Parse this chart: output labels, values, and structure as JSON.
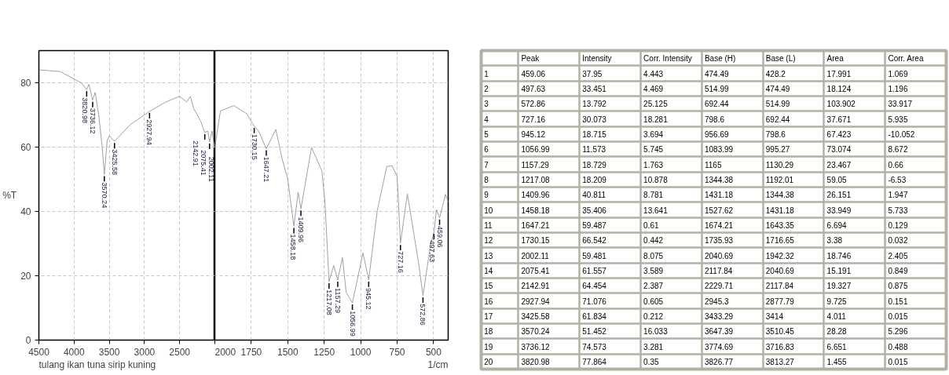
{
  "chart_data": [
    {
      "type": "line",
      "ylabel": "%T",
      "xlim": [
        4500,
        2000
      ],
      "ylim": [
        0,
        90
      ],
      "xticks": [
        4500,
        4000,
        3500,
        3000,
        2500
      ],
      "yticks": [
        0,
        20,
        40,
        60,
        80
      ],
      "grid": true,
      "series": [
        {
          "color": "#a0a0a0",
          "x": [
            4500,
            4200,
            3900,
            3820.98,
            3790,
            3736.12,
            3700,
            3650,
            3600,
            3570.24,
            3530,
            3500,
            3425.58,
            3200,
            2927.94,
            2700,
            2500,
            2400,
            2348,
            2300,
            2200,
            2160,
            2142.91,
            2100,
            2075.41,
            2040,
            2002.11,
            2000
          ],
          "values": [
            84,
            83.5,
            80,
            77.9,
            79.5,
            74.6,
            77,
            70,
            60,
            51.5,
            62,
            63.5,
            61.8,
            67,
            71.1,
            74,
            75.8,
            74,
            75.8,
            72,
            68,
            65.5,
            64.5,
            65,
            61.6,
            65,
            59.5,
            60
          ]
        }
      ],
      "annotations": [
        "tulang ikan tuna sirip kuning",
        {
          "text": "3820.98",
          "x": 3820.98,
          "y": 77.9
        },
        {
          "text": "3736.12",
          "x": 3736.12,
          "y": 74.6
        },
        {
          "text": "3570.24",
          "x": 3570.24,
          "y": 51.5
        },
        {
          "text": "3425.58",
          "x": 3425.58,
          "y": 61.8
        },
        {
          "text": "2927.94",
          "x": 2927.94,
          "y": 71.1
        },
        {
          "text": "2142.91",
          "x": 2142.91,
          "y": 64.5
        },
        {
          "text": "2075.41",
          "x": 2075.41,
          "y": 61.6
        },
        {
          "text": "2002.11",
          "x": 2002.11,
          "y": 59.5
        }
      ]
    },
    {
      "type": "line",
      "xlabel": "1/cm",
      "xlim": [
        2000,
        400
      ],
      "ylim": [
        0,
        90
      ],
      "xticks": [
        2000,
        1750,
        1500,
        1250,
        1000,
        750,
        500
      ],
      "yticks": [
        0,
        20,
        40,
        60,
        80
      ],
      "grid": true,
      "tick_labels": "x",
      "series": [
        {
          "color": "#a0a0a0",
          "x": [
            2000,
            1962,
            1871,
            1782,
            1730.15,
            1700,
            1647.21,
            1582,
            1538,
            1500,
            1458.18,
            1429,
            1409.96,
            1337,
            1266,
            1245,
            1217.08,
            1185,
            1157.29,
            1125,
            1100,
            1056.99,
            984,
            945.12,
            886,
            821,
            785,
            750,
            727.16,
            680,
            603,
            572.86,
            520,
            497.63,
            480,
            459.06,
            418,
            400
          ],
          "values": [
            60,
            71.2,
            72.9,
            70.4,
            66.5,
            65,
            59.5,
            65.5,
            56.2,
            50,
            35.4,
            46,
            40.8,
            59.9,
            52.6,
            42.8,
            18.2,
            23.2,
            18.7,
            25.7,
            14.9,
            11.6,
            27.1,
            18.7,
            40.3,
            54,
            54.2,
            50.9,
            30.1,
            45.5,
            24,
            13.8,
            30,
            33.5,
            40.6,
            38,
            45.3,
            43
          ]
        }
      ],
      "annotations": [
        {
          "text": "1730.15",
          "x": 1730.15,
          "y": 66.5
        },
        {
          "text": "1647.21",
          "x": 1647.21,
          "y": 59.5
        },
        {
          "text": "1458.18",
          "x": 1458.18,
          "y": 35.4
        },
        {
          "text": "1409.96",
          "x": 1409.96,
          "y": 40.8
        },
        {
          "text": "1217.08",
          "x": 1217.08,
          "y": 18.2
        },
        {
          "text": "1157.29",
          "x": 1157.29,
          "y": 18.7
        },
        {
          "text": "1056.99",
          "x": 1056.99,
          "y": 11.6
        },
        {
          "text": "945.12",
          "x": 945.12,
          "y": 18.7
        },
        {
          "text": "727.16",
          "x": 727.16,
          "y": 30.1
        },
        {
          "text": "572.86",
          "x": 572.86,
          "y": 13.8
        },
        {
          "text": "497.63",
          "x": 497.63,
          "y": 33.5
        },
        {
          "text": "459.06",
          "x": 459.06,
          "y": 38.0
        }
      ]
    },
    {
      "type": "heatmap",
      "data_labels": true,
      "categories": [
        "Peak",
        "Intensity",
        "Corr. Intensity",
        "Base (H)",
        "Base (L)",
        "Area",
        "Corr. Area"
      ],
      "y_categories": [
        "1",
        "2",
        "3",
        "4",
        "5",
        "6",
        "7",
        "8",
        "9",
        "10",
        "11",
        "12",
        "13",
        "14",
        "15",
        "16",
        "17",
        "18",
        "19",
        "20"
      ],
      "cells": [
        [
          459.06,
          37.95,
          4.443,
          474.49,
          428.2,
          17.991,
          1.069
        ],
        [
          497.63,
          33.451,
          4.469,
          514.99,
          474.49,
          18.124,
          1.196
        ],
        [
          572.86,
          13.792,
          25.125,
          692.44,
          514.99,
          103.902,
          33.917
        ],
        [
          727.16,
          30.073,
          18.281,
          798.6,
          692.44,
          37.671,
          5.935
        ],
        [
          945.12,
          18.715,
          3.694,
          956.69,
          798.6,
          67.423,
          -10.052
        ],
        [
          1056.99,
          11.573,
          5.745,
          1083.99,
          995.27,
          73.074,
          8.672
        ],
        [
          1157.29,
          18.729,
          1.763,
          1165,
          1130.29,
          23.467,
          0.66
        ],
        [
          1217.08,
          18.209,
          10.878,
          1344.38,
          1192.01,
          59.05,
          -6.53
        ],
        [
          1409.96,
          40.811,
          8.781,
          1431.18,
          1344.38,
          26.151,
          1.947
        ],
        [
          1458.18,
          35.406,
          13.641,
          1527.62,
          1431.18,
          33.949,
          5.733
        ],
        [
          1647.21,
          59.487,
          0.61,
          1674.21,
          1643.35,
          6.694,
          0.129
        ],
        [
          1730.15,
          66.542,
          0.442,
          1735.93,
          1716.65,
          3.38,
          0.032
        ],
        [
          2002.11,
          59.481,
          8.075,
          2040.69,
          1942.32,
          18.746,
          2.405
        ],
        [
          2075.41,
          61.557,
          3.589,
          2117.84,
          2040.69,
          15.191,
          0.849
        ],
        [
          2142.91,
          64.454,
          2.387,
          2229.71,
          2117.84,
          19.327,
          0.875
        ],
        [
          2927.94,
          71.076,
          0.605,
          2945.3,
          2877.79,
          9.725,
          0.151
        ],
        [
          3425.58,
          61.834,
          0.212,
          3433.29,
          3414,
          4.011,
          0.015
        ],
        [
          3570.24,
          51.452,
          16.033,
          3647.39,
          3510.45,
          28.28,
          5.296
        ],
        [
          3736.12,
          74.573,
          3.281,
          3774.69,
          3716.83,
          6.651,
          0.488
        ],
        [
          3820.98,
          77.864,
          0.35,
          3826.77,
          3813.27,
          1.455,
          0.015
        ]
      ]
    }
  ]
}
